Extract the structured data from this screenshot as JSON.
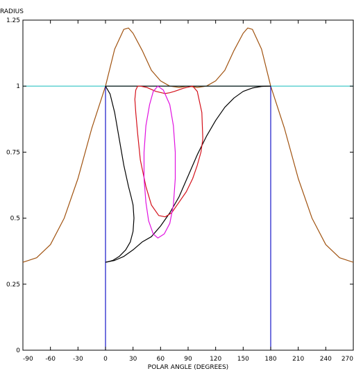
{
  "chart_data": {
    "type": "line",
    "xlabel": "POLAR ANGLE (DEGREES)",
    "ylabel": "RADIUS",
    "xlim": [
      -90,
      270
    ],
    "ylim": [
      0,
      1.25
    ],
    "xticks": [
      -90,
      -60,
      -30,
      0,
      30,
      60,
      90,
      120,
      150,
      180,
      210,
      240,
      270
    ],
    "yticks": [
      0,
      0.25,
      0.5,
      0.75,
      1,
      1.25
    ],
    "ytick_labels": [
      "0",
      "0.25",
      "0.5",
      "0.75",
      "1",
      "1.25"
    ],
    "colors": {
      "brown": "#a0520f",
      "cyan": "#2ec4c4",
      "blue": "#1414c8",
      "black": "#000000",
      "red": "#d4101a",
      "magenta": "#e010e0"
    },
    "series": [
      {
        "color": "brown",
        "x": [
          -90,
          -75,
          -60,
          -45,
          -30,
          -15,
          0,
          10,
          20,
          25,
          30,
          40,
          50,
          60,
          70,
          80,
          90,
          100,
          110,
          120,
          130,
          140,
          150,
          155,
          160,
          170,
          180,
          195,
          210,
          225,
          240,
          255,
          270
        ],
        "y": [
          0.333,
          0.35,
          0.4,
          0.5,
          0.65,
          0.84,
          1.0,
          1.14,
          1.215,
          1.22,
          1.2,
          1.135,
          1.06,
          1.02,
          1.0,
          0.995,
          1.0,
          0.995,
          1.0,
          1.02,
          1.06,
          1.135,
          1.2,
          1.22,
          1.215,
          1.14,
          1.0,
          0.84,
          0.65,
          0.5,
          0.4,
          0.35,
          0.333
        ]
      },
      {
        "color": "cyan",
        "x": [
          -90,
          270
        ],
        "y": [
          1,
          1
        ]
      },
      {
        "color": "blue",
        "x": [
          0,
          0
        ],
        "y": [
          0,
          1
        ]
      },
      {
        "color": "blue",
        "x": [
          180,
          180
        ],
        "y": [
          0,
          1
        ]
      },
      {
        "color": "black",
        "x": [
          0,
          180
        ],
        "y": [
          1,
          1
        ]
      },
      {
        "color": "black",
        "x": [
          0,
          5,
          10,
          15,
          20,
          25,
          28,
          30,
          31,
          30,
          27,
          22,
          15,
          8,
          3,
          0
        ],
        "y": [
          1.0,
          0.97,
          0.9,
          0.8,
          0.7,
          0.62,
          0.58,
          0.55,
          0.5,
          0.45,
          0.41,
          0.38,
          0.355,
          0.34,
          0.335,
          0.333
        ]
      },
      {
        "color": "black",
        "x": [
          0,
          10,
          20,
          30,
          40,
          50,
          60,
          70,
          80,
          90,
          100,
          110,
          120,
          130,
          140,
          150,
          160,
          170,
          180
        ],
        "y": [
          0.333,
          0.34,
          0.355,
          0.38,
          0.41,
          0.43,
          0.47,
          0.52,
          0.58,
          0.66,
          0.74,
          0.81,
          0.87,
          0.92,
          0.955,
          0.98,
          0.993,
          0.999,
          1.0
        ]
      },
      {
        "color": "red",
        "x": [
          35,
          38,
          45,
          55,
          65,
          70,
          75,
          85,
          95,
          100,
          105,
          106,
          104,
          100,
          95,
          88,
          80,
          72,
          65,
          58,
          50,
          44,
          38,
          35,
          33,
          32,
          33,
          35
        ],
        "y": [
          1.0,
          1.0,
          0.995,
          0.98,
          0.972,
          0.975,
          0.98,
          0.992,
          1.0,
          0.98,
          0.9,
          0.8,
          0.75,
          0.7,
          0.65,
          0.6,
          0.56,
          0.52,
          0.505,
          0.51,
          0.55,
          0.62,
          0.72,
          0.82,
          0.9,
          0.95,
          0.985,
          1.0
        ]
      },
      {
        "color": "magenta",
        "x": [
          57,
          63,
          70,
          74,
          76,
          76,
          74,
          70,
          64,
          57,
          52,
          47,
          44,
          42,
          42,
          44,
          48,
          52,
          57
        ],
        "y": [
          1.0,
          0.985,
          0.93,
          0.85,
          0.75,
          0.65,
          0.55,
          0.48,
          0.44,
          0.425,
          0.44,
          0.49,
          0.56,
          0.65,
          0.75,
          0.85,
          0.93,
          0.98,
          1.0
        ]
      }
    ]
  }
}
